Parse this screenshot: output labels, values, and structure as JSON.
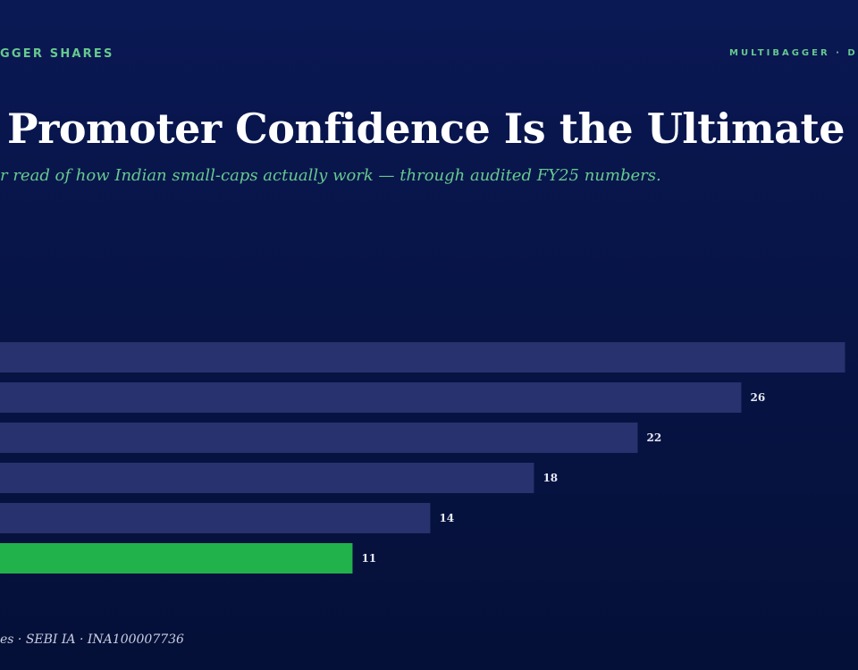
{
  "header": {
    "brand_left": "GGER SHARES",
    "brand_right": "MULTIBAGGER · D"
  },
  "title": "Promoter Confidence Is the Ultimate",
  "subtitle": "r read of how Indian small-caps actually work — through audited FY25 numbers.",
  "footer": "es · SEBI IA · INA100007736",
  "colors": {
    "background": "#071446",
    "bar": "#27326e",
    "highlight_bar": "#22b24c",
    "accent_text": "#67c98e",
    "value_label": "#e6e9f5"
  },
  "chart_data": {
    "type": "bar",
    "orientation": "horizontal",
    "values": [
      30,
      26,
      22,
      18,
      14,
      11
    ],
    "value_labels": [
      "",
      "26",
      "22",
      "18",
      "14",
      "11"
    ],
    "highlight_index": 5,
    "xlim": [
      -2.6,
      30.5
    ],
    "grid": false,
    "legend": "none"
  }
}
